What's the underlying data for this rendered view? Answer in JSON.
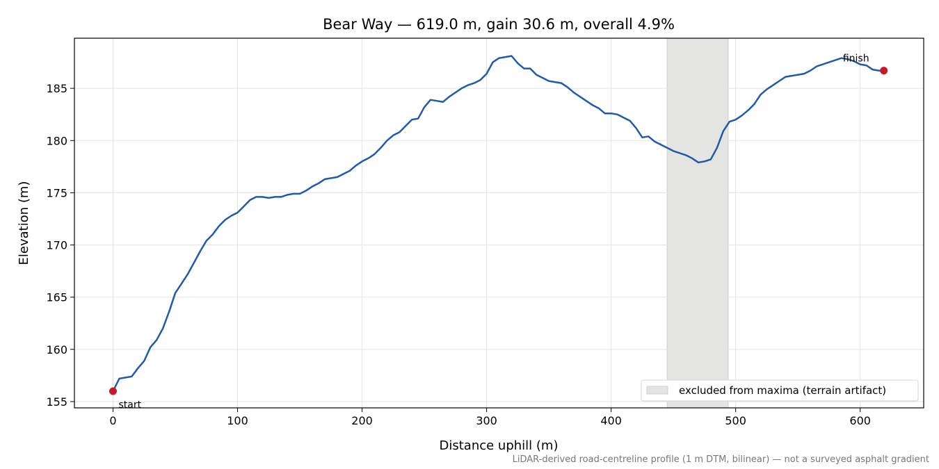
{
  "chart_data": {
    "type": "line",
    "title": "Bear Way — 619.0 m, gain 30.6 m, overall 4.9%",
    "xlabel": "Distance uphill (m)",
    "ylabel": "Elevation (m)",
    "note": "LiDAR-derived road-centreline profile (1 m DTM, bilinear) — not a surveyed asphalt gradient",
    "x": [
      0,
      5,
      10,
      15,
      20,
      25,
      30,
      35,
      40,
      45,
      50,
      55,
      60,
      65,
      70,
      75,
      80,
      85,
      90,
      95,
      100,
      105,
      110,
      115,
      120,
      125,
      130,
      135,
      140,
      145,
      150,
      155,
      160,
      165,
      170,
      175,
      180,
      185,
      190,
      195,
      200,
      205,
      210,
      215,
      220,
      225,
      230,
      235,
      240,
      245,
      250,
      255,
      260,
      265,
      270,
      275,
      280,
      285,
      290,
      295,
      300,
      305,
      310,
      315,
      320,
      325,
      330,
      335,
      340,
      345,
      350,
      355,
      360,
      365,
      370,
      375,
      380,
      385,
      390,
      395,
      400,
      405,
      410,
      415,
      420,
      425,
      430,
      435,
      440,
      445,
      450,
      455,
      460,
      465,
      470,
      475,
      480,
      485,
      490,
      495,
      500,
      505,
      510,
      515,
      520,
      525,
      530,
      535,
      540,
      545,
      550,
      555,
      560,
      565,
      570,
      575,
      580,
      585,
      590,
      595,
      600,
      605,
      610,
      615,
      619
    ],
    "values": [
      156.0,
      157.2,
      157.3,
      157.4,
      158.2,
      158.9,
      160.2,
      160.9,
      162.0,
      163.6,
      165.4,
      166.3,
      167.2,
      168.3,
      169.4,
      170.4,
      171.0,
      171.8,
      172.4,
      172.8,
      173.1,
      173.7,
      174.3,
      174.6,
      174.6,
      174.5,
      174.6,
      174.6,
      174.8,
      174.9,
      174.9,
      175.2,
      175.6,
      175.9,
      176.3,
      176.4,
      176.5,
      176.8,
      177.1,
      177.6,
      178.0,
      178.3,
      178.7,
      179.3,
      180.0,
      180.5,
      180.8,
      181.4,
      182.0,
      182.1,
      183.2,
      183.9,
      183.8,
      183.7,
      184.2,
      184.6,
      185.0,
      185.3,
      185.5,
      185.8,
      186.4,
      187.5,
      187.9,
      188.0,
      188.1,
      187.4,
      186.9,
      186.9,
      186.3,
      186.0,
      185.7,
      185.6,
      185.5,
      185.1,
      184.6,
      184.2,
      183.8,
      183.4,
      183.1,
      182.6,
      182.6,
      182.5,
      182.2,
      181.9,
      181.2,
      180.3,
      180.4,
      179.9,
      179.6,
      179.3,
      179.0,
      178.8,
      178.6,
      178.3,
      177.9,
      178.0,
      178.2,
      179.3,
      180.9,
      181.8,
      182.0,
      182.4,
      182.9,
      183.5,
      184.4,
      184.9,
      185.3,
      185.7,
      186.1,
      186.2,
      186.3,
      186.4,
      186.7,
      187.1,
      187.3,
      187.5,
      187.7,
      187.9,
      187.8,
      187.6,
      187.3,
      187.2,
      186.8,
      186.7,
      186.7
    ],
    "color": "#1f5aab",
    "marker_color": "#c61a2a",
    "annotations": [
      "start",
      "finish"
    ],
    "span": {
      "x": [
        445,
        494
      ],
      "label": "excluded from maxima (terrain artifact)",
      "color": "#e4e4e3"
    },
    "legend": "lower right",
    "xlim": [
      -31,
      651
    ],
    "xticks": [
      0,
      100,
      200,
      300,
      400,
      500,
      600
    ],
    "ylim": [
      154.4,
      189.8
    ],
    "yticks": [
      155,
      160,
      165,
      170,
      175,
      180,
      185
    ],
    "grid": true
  }
}
